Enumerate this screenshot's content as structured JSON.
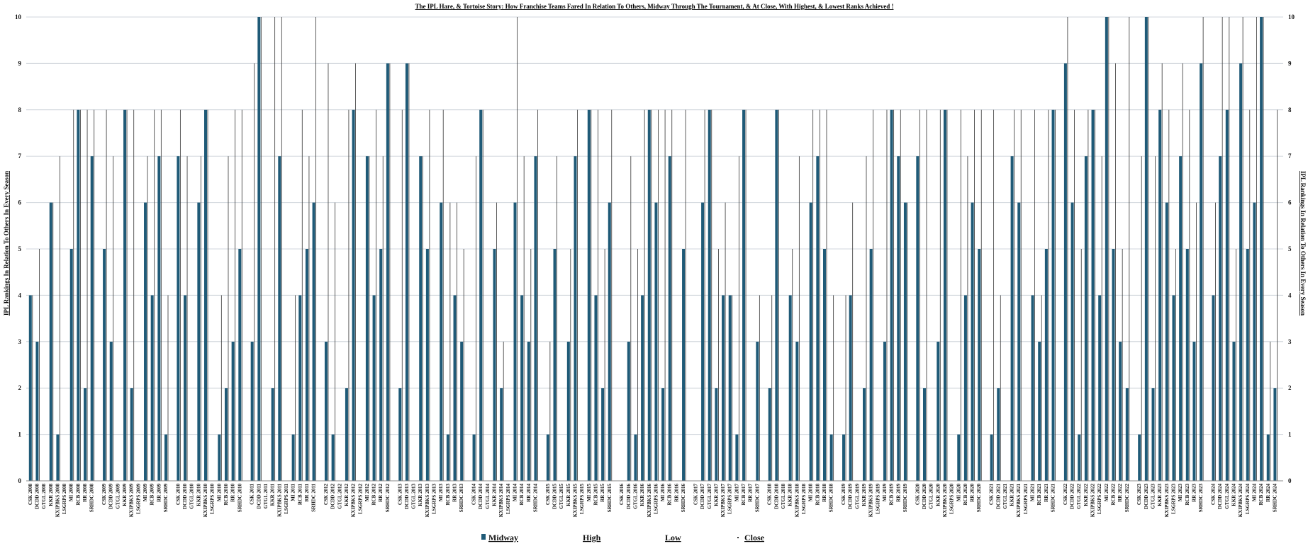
{
  "chart_data": {
    "type": "bar",
    "title": "The IPL Hare, & Tortoise Story: How Franchise Teams Fared In Relation To Others, Midway Through The Tournament, & At Close, With Highest, & Lowest Ranks Achieved !",
    "ylabel_left": "IPL Rankings In Relation To Others In Every Season",
    "ylabel_right": "IPL Rankings In Relation To Others In Every Season",
    "ylim": [
      0,
      10
    ],
    "yticks": [
      "0",
      "1",
      "2",
      "3",
      "4",
      "5",
      "6",
      "7",
      "8",
      "9",
      "10"
    ],
    "grid": true,
    "legend": [
      "Midway",
      "High",
      "Low",
      "Close"
    ],
    "legend_position": "bottom",
    "colors": {
      "midway": "#1f5a77",
      "line": "#333333",
      "grid": "#d0d6dc"
    },
    "seasons": [
      {
        "season": "2008",
        "categories": [
          "CSK 2008",
          "DCDD 2008",
          "GTGL 2008",
          "KKR 2008",
          "KXIPBKS 2008",
          "LSGRPS 2008",
          "MI 2008",
          "RCB 2008",
          "RR 2008",
          "SRHDC 2008"
        ],
        "midway": [
          4,
          3,
          0,
          6,
          1,
          0,
          5,
          8,
          2,
          7
        ],
        "high": [
          4,
          5,
          0,
          6,
          7,
          0,
          8,
          8,
          8,
          8
        ]
      },
      {
        "season": "2009",
        "categories": [
          "CSK 2009",
          "DCDD 2009",
          "GTGL 2009",
          "KKR 2009",
          "KXIPBKS 2009",
          "LSGRPS 2009",
          "MI 2009",
          "RCB 2009",
          "RR 2009",
          "SRHDC 2009"
        ],
        "midway": [
          5,
          3,
          0,
          8,
          2,
          0,
          6,
          4,
          7,
          1
        ],
        "high": [
          8,
          7,
          0,
          8,
          8,
          0,
          7,
          8,
          8,
          4
        ]
      },
      {
        "season": "2010",
        "categories": [
          "CSK 2010",
          "DCDD 2010",
          "GTGL 2010",
          "KKR 2010",
          "KXIPBKS 2010",
          "LSGRPS 2010",
          "MI 2010",
          "RCB 2010",
          "RR 2010",
          "SRHDC 2010"
        ],
        "midway": [
          7,
          4,
          0,
          6,
          8,
          0,
          1,
          2,
          3,
          5
        ],
        "high": [
          8,
          7,
          0,
          7,
          8,
          0,
          4,
          7,
          8,
          8
        ]
      },
      {
        "season": "2011",
        "categories": [
          "CSK 2011",
          "DCDD 2011",
          "GTGL 2011",
          "KKR 2011",
          "KXIPBKS 2011",
          "LSGRPS 2011",
          "MI 2011",
          "RCB 2011",
          "RR 2011",
          "SRHDC 2011"
        ],
        "midway": [
          3,
          10,
          0,
          2,
          7,
          0,
          1,
          4,
          5,
          6
        ],
        "high": [
          9,
          10,
          0,
          10,
          10,
          0,
          4,
          8,
          7,
          10
        ]
      },
      {
        "season": "2012",
        "categories": [
          "CSK 2012",
          "DCDD 2012",
          "GTGL 2012",
          "KKR 2012",
          "KXIPBKS 2012",
          "LSGRPS 2012",
          "MI 2012",
          "RCB 2012",
          "RR 2012",
          "SRHDC 2012"
        ],
        "midway": [
          3,
          1,
          0,
          2,
          8,
          0,
          7,
          4,
          5,
          9
        ],
        "high": [
          9,
          6,
          0,
          8,
          9,
          0,
          7,
          8,
          7,
          9
        ]
      },
      {
        "season": "2013",
        "categories": [
          "CSK 2013",
          "DCDD 2013",
          "GTGL 2013",
          "KKR 2013",
          "KXIPBKS 2013",
          "LSGRPS 2013",
          "MI 2013",
          "RCB 2013",
          "RR 2013",
          "SRHDC 2013"
        ],
        "midway": [
          2,
          9,
          0,
          7,
          5,
          0,
          6,
          1,
          4,
          3
        ],
        "high": [
          8,
          9,
          0,
          7,
          8,
          0,
          8,
          6,
          6,
          5
        ]
      },
      {
        "season": "2014",
        "categories": [
          "CSK 2014",
          "DCDD 2014",
          "GTGL 2014",
          "KKR 2014",
          "KXIPBKS 2014",
          "LSGRPS 2014",
          "MI 2014",
          "RCB 2014",
          "RR 2014",
          "SRHDC 2014"
        ],
        "midway": [
          1,
          8,
          0,
          5,
          2,
          0,
          6,
          4,
          3,
          7
        ],
        "high": [
          7,
          8,
          0,
          6,
          3,
          0,
          10,
          7,
          5,
          8
        ]
      },
      {
        "season": "2015",
        "categories": [
          "CSK 2015",
          "DCDD 2015",
          "GTGL 2015",
          "KKR 2015",
          "KXIPBKS 2015",
          "LSGRPS 2015",
          "MI 2015",
          "RCB 2015",
          "RR 2015",
          "SRHDC 2015"
        ],
        "midway": [
          1,
          5,
          0,
          3,
          7,
          0,
          8,
          4,
          2,
          6
        ],
        "high": [
          3,
          7,
          0,
          5,
          8,
          0,
          8,
          8,
          5,
          8
        ]
      },
      {
        "season": "2016",
        "categories": [
          "CSK 2016",
          "DCDD 2016",
          "GTGL 2016",
          "KKR 2016",
          "KXIPBKS 2016",
          "LSGRPS 2016",
          "MI 2016",
          "RCB 2016",
          "RR 2016",
          "SRHDC 2016"
        ],
        "midway": [
          0,
          3,
          1,
          4,
          8,
          6,
          2,
          7,
          0,
          5
        ],
        "high": [
          0,
          7,
          5,
          8,
          8,
          8,
          8,
          8,
          0,
          8
        ]
      },
      {
        "season": "2017",
        "categories": [
          "CSK 2017",
          "DCDD 2017",
          "GTGL 2017",
          "KKR 2017",
          "KXIPBKS 2017",
          "LSGRPS 2017",
          "MI 2017",
          "RCB 2017",
          "RR 2017",
          "SRHDC 2017"
        ],
        "midway": [
          0,
          6,
          8,
          2,
          4,
          4,
          1,
          8,
          0,
          3
        ],
        "high": [
          0,
          8,
          8,
          5,
          6,
          4,
          7,
          8,
          0,
          4
        ]
      },
      {
        "season": "2018",
        "categories": [
          "CSK 2018",
          "DCDD 2018",
          "GTGL 2018",
          "KKR 2018",
          "KXIPBKS 2018",
          "LSGRPS 2018",
          "MI 2018",
          "RCB 2018",
          "RR 2018",
          "SRHDC 2018"
        ],
        "midway": [
          2,
          8,
          0,
          4,
          3,
          0,
          6,
          7,
          5,
          1
        ],
        "high": [
          4,
          8,
          0,
          5,
          7,
          0,
          8,
          8,
          8,
          4
        ]
      },
      {
        "season": "2019",
        "categories": [
          "CSK 2019",
          "DCDD 2019",
          "GTGL 2019",
          "KKR 2019",
          "KXIPBKS 2019",
          "LSGRPS 2019",
          "MI 2019",
          "RCB 2019",
          "RR 2019",
          "SRHDC 2019"
        ],
        "midway": [
          1,
          4,
          0,
          2,
          5,
          0,
          3,
          8,
          7,
          6
        ],
        "high": [
          4,
          6,
          0,
          7,
          8,
          0,
          8,
          8,
          8,
          6
        ]
      },
      {
        "season": "2020",
        "categories": [
          "CSK 2020",
          "DCDD 2020",
          "GTGL 2020",
          "KKR 2020",
          "KXIPBKS 2020",
          "LSGRPS 2020",
          "MI 2020",
          "RCB 2020",
          "RR 2020",
          "SRHDC 2020"
        ],
        "midway": [
          7,
          2,
          0,
          3,
          8,
          0,
          1,
          4,
          6,
          5
        ],
        "high": [
          8,
          8,
          0,
          8,
          8,
          0,
          8,
          7,
          8,
          8
        ]
      },
      {
        "season": "2021",
        "categories": [
          "CSK 2021",
          "DCDD 2021",
          "GTGL 2021",
          "KKR 2021",
          "KXIPBKS 2021",
          "LSGRPS 2021",
          "MI 2021",
          "RCB 2021",
          "RR 2021",
          "SRHDC 2021"
        ],
        "midway": [
          1,
          2,
          0,
          7,
          6,
          0,
          4,
          3,
          5,
          8
        ],
        "high": [
          8,
          4,
          0,
          8,
          8,
          0,
          8,
          4,
          8,
          8
        ]
      },
      {
        "season": "2022",
        "categories": [
          "CSK 2022",
          "DCDD 2022",
          "GTGL 2022",
          "KKR 2022",
          "KXIPBKS 2022",
          "LSGRPS 2022",
          "MI 2022",
          "RCB 2022",
          "RR 2022",
          "SRHDC 2022"
        ],
        "midway": [
          9,
          6,
          1,
          7,
          8,
          4,
          10,
          5,
          3,
          2
        ],
        "high": [
          10,
          8,
          5,
          8,
          8,
          7,
          10,
          9,
          5,
          10
        ]
      },
      {
        "season": "2023",
        "categories": [
          "CSK 2023",
          "DCDD 2023",
          "GTGL 2023",
          "KKR 2023",
          "KXIPBKS 2023",
          "LSGRPS 2023",
          "MI 2023",
          "RCB 2023",
          "RR 2023",
          "SRHDC 2023"
        ],
        "midway": [
          1,
          10,
          2,
          8,
          6,
          4,
          7,
          5,
          3,
          9
        ],
        "high": [
          7,
          10,
          7,
          9,
          8,
          5,
          9,
          8,
          6,
          10
        ]
      },
      {
        "season": "2024",
        "categories": [
          "CSK 2024",
          "DCDD 2024",
          "GTGL 2024",
          "KKR 2024",
          "KXIPBKS 2024",
          "LSGRPS 2024",
          "MI 2024",
          "RCB 2024",
          "RR 2024",
          "SRHDC 2024"
        ],
        "midway": [
          4,
          7,
          8,
          3,
          9,
          5,
          6,
          10,
          1,
          2
        ],
        "high": [
          6,
          10,
          10,
          5,
          10,
          8,
          10,
          10,
          3,
          8
        ]
      }
    ]
  }
}
